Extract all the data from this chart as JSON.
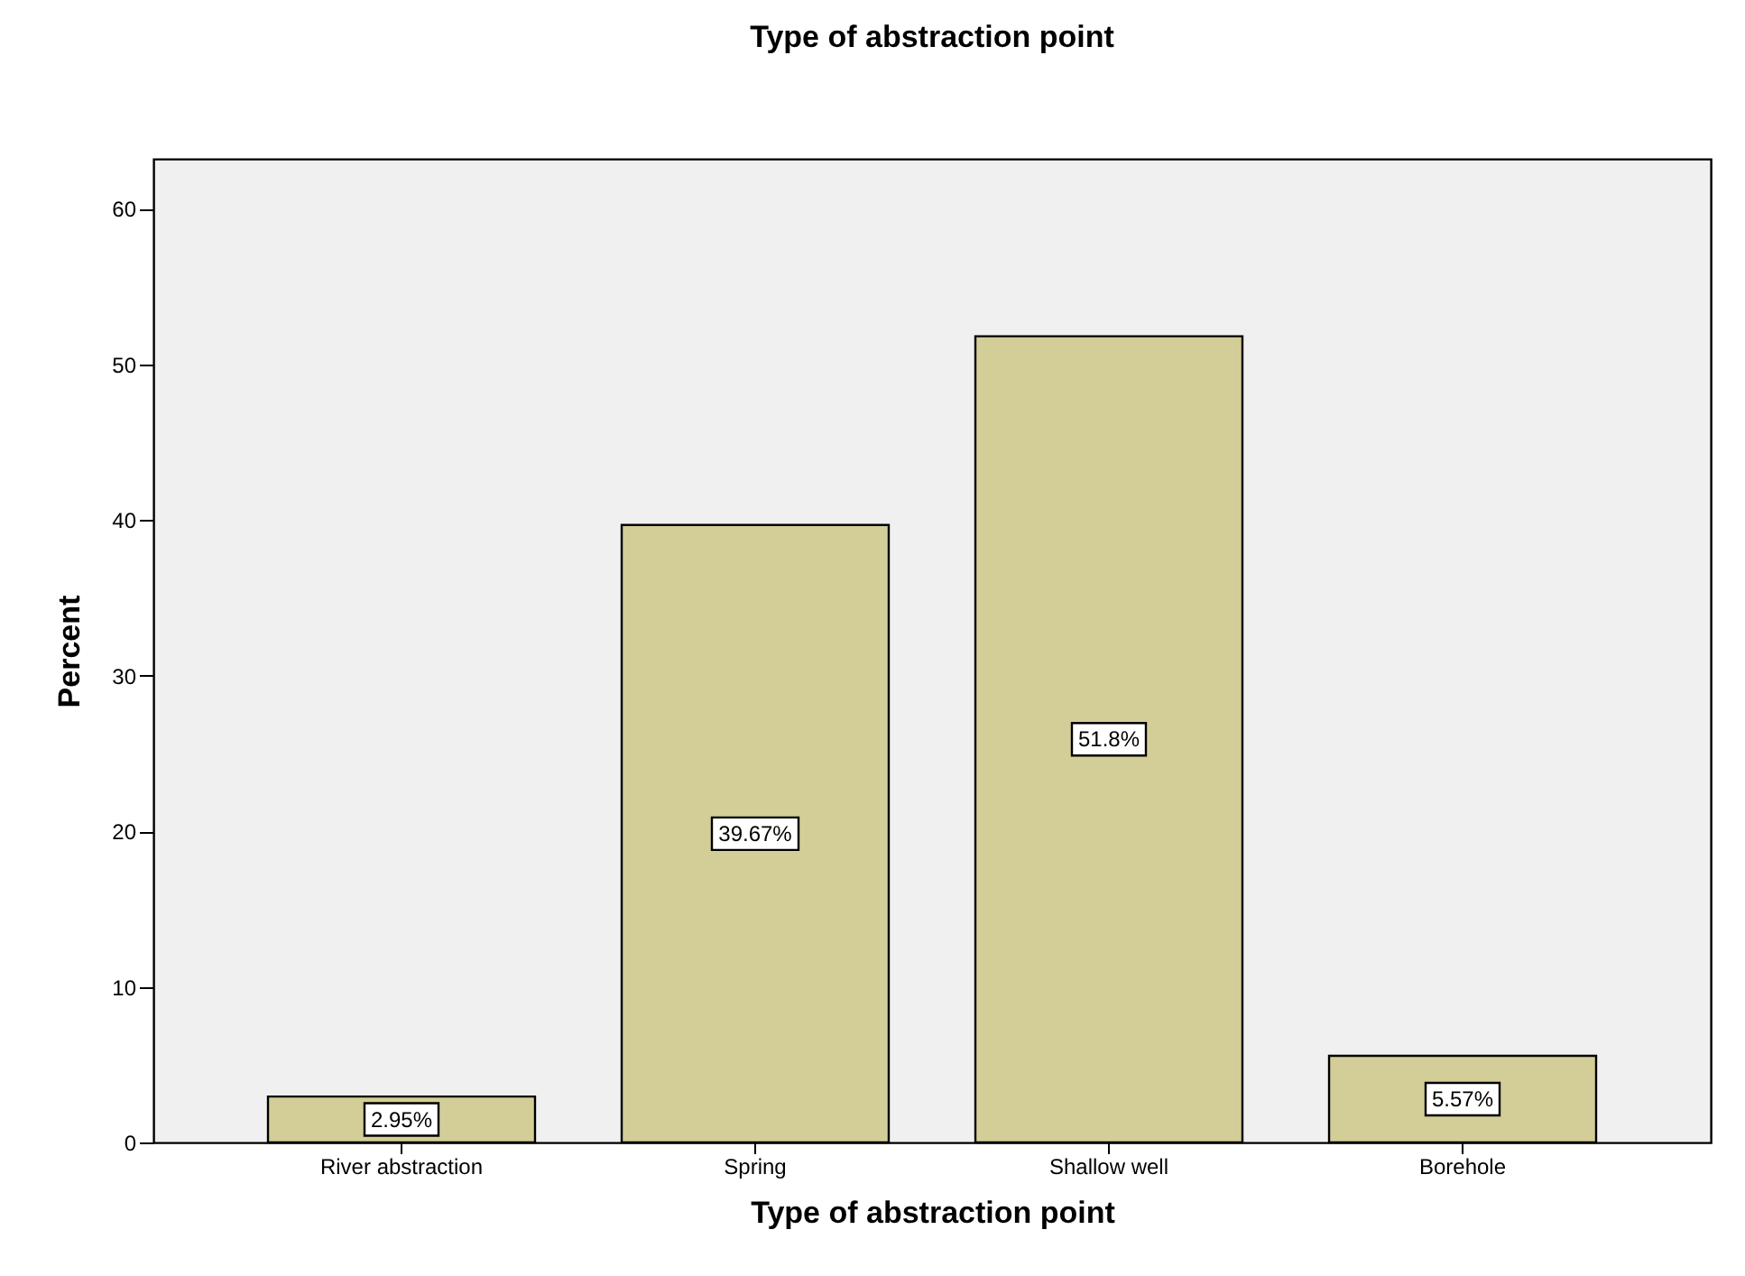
{
  "chart_data": {
    "type": "bar",
    "title": "Type of abstraction point",
    "xlabel": "Type of abstraction point",
    "ylabel": "Percent",
    "categories": [
      "River abstraction",
      "Spring",
      "Shallow well",
      "Borehole"
    ],
    "values": [
      2.95,
      39.67,
      51.8,
      5.57
    ],
    "color": "#d3ce97",
    "value_labels": [
      "2.95%",
      "39.67%",
      "51.8%",
      "5.57%"
    ],
    "ylim": [
      0,
      63.2
    ],
    "yticks": [
      0,
      10,
      20,
      30,
      40,
      50,
      60
    ],
    "grid": false
  }
}
